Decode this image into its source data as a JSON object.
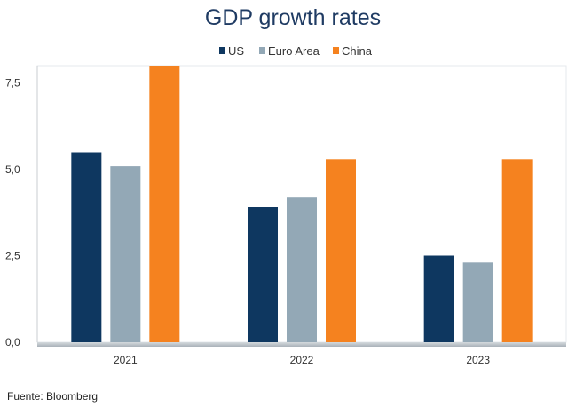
{
  "chart_data": {
    "type": "bar",
    "title": "GDP growth rates",
    "categories": [
      "2021",
      "2022",
      "2023"
    ],
    "series": [
      {
        "name": "US",
        "values": [
          5.5,
          3.9,
          2.5
        ],
        "color": "#0e3760"
      },
      {
        "name": "Euro Area",
        "values": [
          5.1,
          4.2,
          2.3
        ],
        "color": "#93a8b6"
      },
      {
        "name": "China",
        "values": [
          8.0,
          5.3,
          5.3
        ],
        "color": "#f5821f"
      }
    ],
    "yticks": [
      "0,0",
      "2,5",
      "5,0",
      "7,5"
    ],
    "ytick_values": [
      0,
      2.5,
      5,
      7.5
    ],
    "ylim": [
      0,
      8.0
    ],
    "grid": false,
    "legend_position": "top"
  },
  "source": "Fuente: Bloomberg"
}
